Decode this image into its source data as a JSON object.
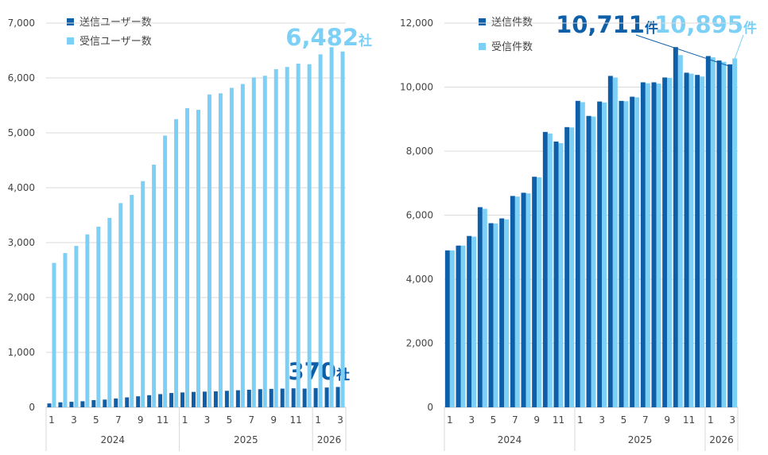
{
  "chart_data": [
    {
      "type": "bar",
      "legend": "top-left",
      "grid": true,
      "ylim": [
        0,
        7000
      ],
      "yticks": [
        "0",
        "1,000",
        "2,000",
        "3,000",
        "4,000",
        "5,000",
        "6,000",
        "7,000"
      ],
      "months": [
        "1",
        "2",
        "3",
        "4",
        "5",
        "6",
        "7",
        "8",
        "9",
        "10",
        "11",
        "12",
        "1",
        "2",
        "3",
        "4",
        "5",
        "6",
        "7",
        "8",
        "9",
        "10",
        "11",
        "12",
        "1",
        "2",
        "3"
      ],
      "month_labels": [
        "1",
        "",
        "3",
        "",
        "5",
        "",
        "7",
        "",
        "9",
        "",
        "11",
        "",
        "1",
        "",
        "3",
        "",
        "5",
        "",
        "7",
        "",
        "9",
        "",
        "11",
        "",
        "1",
        "",
        "3"
      ],
      "years": [
        "2024",
        "2025",
        "2026"
      ],
      "series": [
        {
          "name": "送信ユーザー数",
          "color": "#0f5fa8",
          "values": [
            70,
            90,
            100,
            110,
            130,
            140,
            160,
            180,
            200,
            220,
            240,
            260,
            270,
            280,
            285,
            290,
            300,
            310,
            320,
            330,
            335,
            340,
            345,
            340,
            350,
            360,
            370
          ]
        },
        {
          "name": "受信ユーザー数",
          "color": "#7dd0f5",
          "values": [
            2630,
            2810,
            2940,
            3150,
            3290,
            3450,
            3720,
            3870,
            4120,
            4420,
            4950,
            5250,
            5450,
            5420,
            5700,
            5720,
            5820,
            5890,
            6010,
            6040,
            6160,
            6200,
            6260,
            6250,
            6430,
            6560,
            6482
          ]
        }
      ],
      "annotations": [
        {
          "value": "6,482",
          "unit": "社",
          "color": "#7dd0f5"
        },
        {
          "value": "370",
          "unit": "社",
          "color": "#0f5fa8"
        }
      ]
    },
    {
      "type": "bar",
      "legend": "top-left",
      "grid": true,
      "ylim": [
        0,
        12000
      ],
      "yticks": [
        "0",
        "2,000",
        "4,000",
        "6,000",
        "8,000",
        "10,000",
        "12,000"
      ],
      "months": [
        "1",
        "2",
        "3",
        "4",
        "5",
        "6",
        "7",
        "8",
        "9",
        "10",
        "11",
        "12",
        "1",
        "2",
        "3",
        "4",
        "5",
        "6",
        "7",
        "8",
        "9",
        "10",
        "11",
        "12",
        "1",
        "2",
        "3"
      ],
      "month_labels": [
        "1",
        "",
        "3",
        "",
        "5",
        "",
        "7",
        "",
        "9",
        "",
        "11",
        "",
        "1",
        "",
        "3",
        "",
        "5",
        "",
        "7",
        "",
        "9",
        "",
        "11",
        "",
        "1",
        "",
        "3"
      ],
      "years": [
        "2024",
        "2025",
        "2026"
      ],
      "series": [
        {
          "name": "送信件数",
          "color": "#0f5fa8",
          "values": [
            4900,
            5050,
            5350,
            6250,
            5750,
            5900,
            6600,
            6700,
            7200,
            8600,
            8300,
            8750,
            9570,
            9100,
            9550,
            10350,
            9570,
            9700,
            10150,
            10150,
            10300,
            11250,
            10450,
            10380,
            10970,
            10830,
            10711
          ]
        },
        {
          "name": "受信件数",
          "color": "#7dd0f5",
          "values": [
            4900,
            5050,
            5330,
            6200,
            5740,
            5870,
            6580,
            6680,
            7180,
            8550,
            8250,
            8740,
            9530,
            9080,
            9520,
            10300,
            9560,
            9680,
            10120,
            10110,
            10290,
            11000,
            10420,
            10330,
            10930,
            10790,
            10895
          ]
        }
      ],
      "annotations": [
        {
          "value": "10,711",
          "unit": "件",
          "color": "#0f5fa8"
        },
        {
          "value": "10,895",
          "unit": "件",
          "color": "#7dd0f5"
        }
      ]
    }
  ]
}
